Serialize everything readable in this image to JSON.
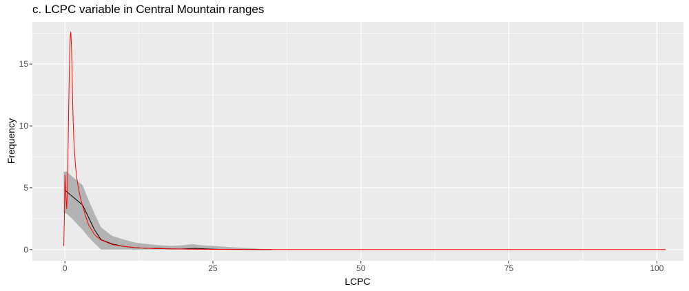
{
  "chart_data": {
    "type": "line",
    "title": "c. LCPC variable in Central Mountain ranges",
    "xlabel": "LCPC",
    "ylabel": "Frequency",
    "xlim": [
      -5.5,
      104.5
    ],
    "ylim": [
      -0.9,
      18.4
    ],
    "x_ticks": [
      0,
      25,
      50,
      75,
      100
    ],
    "x_tick_labels": [
      "0",
      "25",
      "50",
      "75",
      "100"
    ],
    "y_ticks": [
      0,
      5,
      10,
      15
    ],
    "y_tick_labels": [
      "0",
      "5",
      "10",
      "15"
    ],
    "grid": true,
    "panel_background": "#ebebeb",
    "grid_color": "#ffffff",
    "series": [
      {
        "kind": "ribbon",
        "color": "#b3b3b3",
        "x": [
          -0.2,
          0.3,
          1.0,
          2.0,
          3.0,
          4.0,
          5.0,
          6.1,
          8.0,
          10.0,
          12.0,
          14.0,
          16.0,
          18.0,
          20.0,
          21.5,
          23.0,
          25.0,
          28.0,
          30.0,
          32.0,
          34.0
        ],
        "ymin": [
          3.0,
          2.9,
          2.6,
          2.1,
          1.6,
          1.0,
          0.5,
          0.0,
          0.0,
          0.0,
          0.0,
          0.0,
          0.0,
          0.0,
          0.0,
          0.0,
          0.0,
          0.0,
          0.0,
          0.0,
          0.0,
          0.0
        ],
        "ymax": [
          6.3,
          6.3,
          6.0,
          5.6,
          5.2,
          4.0,
          2.9,
          1.8,
          1.1,
          0.8,
          0.55,
          0.45,
          0.35,
          0.3,
          0.35,
          0.45,
          0.35,
          0.3,
          0.2,
          0.15,
          0.1,
          0.0
        ]
      },
      {
        "kind": "line",
        "color": "#000000",
        "x": [
          0.0,
          1.0,
          2.0,
          3.0,
          4.0,
          5.0,
          6.1,
          8.0,
          10.0,
          12.0,
          14.0,
          16.0,
          18.0,
          20.0,
          22.0,
          24.0,
          26.0,
          30.0,
          35.0
        ],
        "y": [
          4.8,
          4.4,
          4.0,
          3.6,
          2.6,
          1.6,
          0.8,
          0.45,
          0.25,
          0.15,
          0.1,
          0.1,
          0.05,
          0.05,
          0.1,
          0.05,
          0.02,
          0.01,
          0.0
        ]
      },
      {
        "kind": "line",
        "color": "#ff0000",
        "x": [
          -0.2,
          -0.1,
          0.0,
          0.1,
          0.2,
          0.3,
          0.4,
          0.5,
          0.6,
          0.7,
          0.8,
          0.9,
          1.0,
          1.1,
          1.2,
          1.3,
          1.4,
          1.5,
          1.6,
          1.8,
          2.0,
          2.3,
          2.6,
          3.0,
          3.5,
          4.0,
          5.0,
          6.0,
          8.0,
          10.0,
          12.0,
          15.0,
          20.0,
          25.0,
          30.0,
          35.0,
          50.0,
          75.0,
          101.5
        ],
        "y": [
          0.3,
          2.5,
          6.0,
          5.0,
          4.0,
          3.3,
          4.5,
          7.0,
          10.5,
          13.5,
          15.8,
          17.3,
          17.6,
          16.5,
          14.5,
          12.0,
          10.2,
          9.0,
          8.0,
          6.7,
          5.8,
          4.9,
          4.2,
          3.5,
          2.7,
          2.0,
          1.2,
          0.8,
          0.4,
          0.25,
          0.15,
          0.08,
          0.04,
          0.02,
          0.01,
          0.0,
          0.0,
          0.0,
          0.0
        ]
      }
    ]
  }
}
